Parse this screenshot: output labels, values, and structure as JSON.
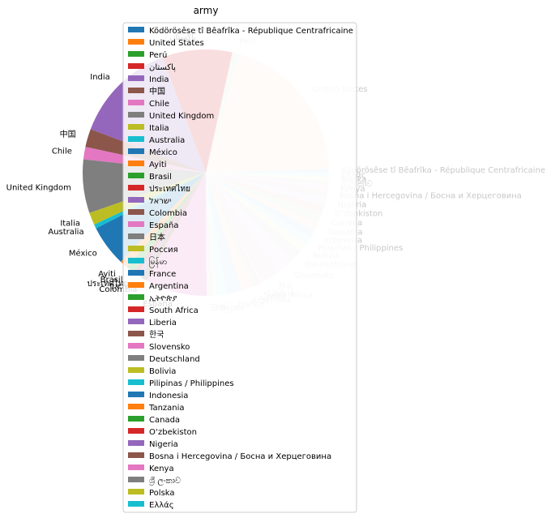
{
  "chart_data": {
    "type": "pie",
    "title": "army",
    "legend_position": "upper-center overlay",
    "categories": [
      "Ködörösêse tî Bêafrîka - République Centrafricaine",
      "United States",
      "Perú",
      "پاکستان",
      "India",
      "中国",
      "Chile",
      "United Kingdom",
      "Italia",
      "Australia",
      "México",
      "Ayiti",
      "Brasil",
      "ประเทศไทย",
      "ישראל",
      "Colombia",
      "España",
      "日本",
      "Россия",
      "မြန်မာ",
      "France",
      "Argentina",
      "ኢትዮጵያ",
      "South Africa",
      "Liberia",
      "한국",
      "Slovensko",
      "Deutschland",
      "Bolivia",
      "Pilipinas / Philippines",
      "Indonesia",
      "Tanzania",
      "Canada",
      "O‘zbekiston",
      "Nigeria",
      "Bosna i Hercegovina / Босна и Херцеговина",
      "Kenya",
      "ශ්‍රී ලංකාව",
      "Polska",
      "Ελλάς"
    ],
    "values": [
      0.5,
      18.5,
      0.9,
      8.5,
      12.5,
      2.2,
      1.5,
      6.5,
      1.5,
      0.5,
      5.0,
      1.0,
      1.0,
      0.5,
      0.5,
      0.8,
      7.5,
      0.8,
      0.4,
      1.2,
      1.9,
      1.3,
      0.5,
      0.5,
      0.5,
      2.2,
      2.0,
      1.5,
      1.0,
      1.0,
      1.0,
      1.0,
      1.2,
      1.0,
      1.0,
      1.0,
      0.5,
      0.5,
      0.5,
      0.5
    ],
    "colors": [
      "#1f77b4",
      "#ff7f0e",
      "#2ca02c",
      "#d62728",
      "#9467bd",
      "#8c564b",
      "#e377c2",
      "#7f7f7f",
      "#bcbd22",
      "#17becf"
    ],
    "highlighted_left_side": true
  }
}
